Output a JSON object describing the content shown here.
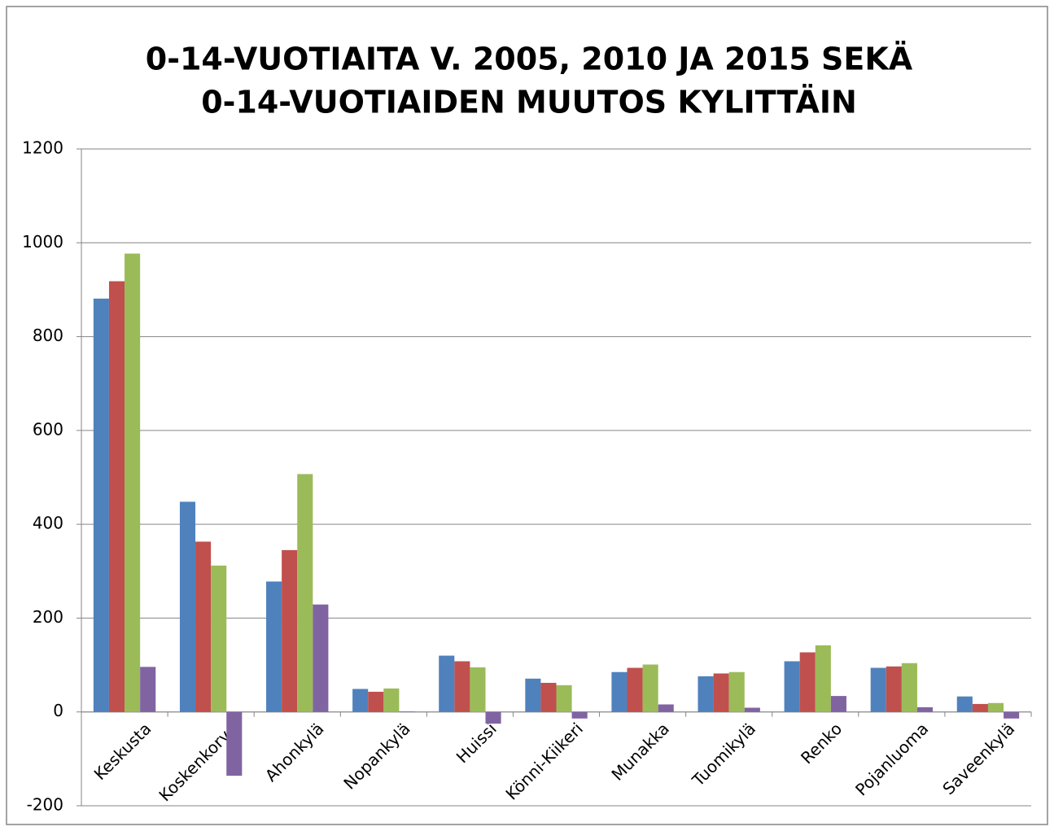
{
  "chart_data": {
    "type": "bar",
    "title": [
      "0-14-VUOTIAITA V. 2005, 2010 JA 2015 SEKÄ",
      "0-14-VUOTIAIDEN MUUTOS KYLITTÄIN"
    ],
    "categories": [
      "Keskusta",
      "Koskenkorva",
      "Ahonkylä",
      "Nopankylä",
      "Huissi",
      "Könni-Kiikeri",
      "Munakka",
      "Tuomikylä",
      "Renko",
      "Pojanluoma",
      "Saveenkylä"
    ],
    "series": [
      {
        "color": "#4f81bd",
        "values": [
          881,
          448,
          278,
          49,
          120,
          71,
          85,
          76,
          108,
          94,
          33
        ]
      },
      {
        "color": "#c0504d",
        "values": [
          918,
          363,
          345,
          43,
          108,
          62,
          94,
          82,
          127,
          97,
          17
        ]
      },
      {
        "color": "#9bbb59",
        "values": [
          977,
          312,
          507,
          50,
          95,
          57,
          101,
          85,
          142,
          104,
          19
        ]
      },
      {
        "color": "#8064a2",
        "values": [
          96,
          -136,
          229,
          1,
          -25,
          -14,
          16,
          9,
          34,
          10,
          -14
        ]
      }
    ],
    "ylim": [
      -200,
      1200
    ],
    "yticks": [
      -200,
      0,
      200,
      400,
      600,
      800,
      1000,
      1200
    ],
    "grid": true
  }
}
